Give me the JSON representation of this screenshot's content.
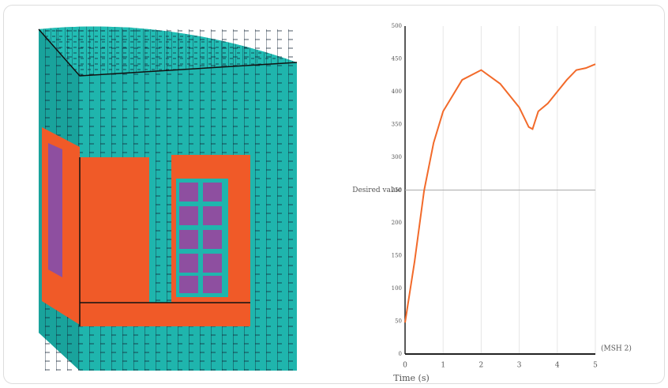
{
  "chart_data": {
    "type": "line",
    "x_label": "Time (s)",
    "x_unit": "(MSH 2)",
    "x": [
      0,
      0.25,
      0.5,
      0.75,
      1,
      1.5,
      2,
      2.5,
      3,
      3.25,
      3.35,
      3.5,
      3.75,
      4,
      4.25,
      4.5,
      4.75,
      5
    ],
    "series": [
      {
        "color": "#f26a2a",
        "values": [
          48,
          141,
          249,
          322,
          370,
          418,
          433,
          412,
          376,
          346,
          343,
          370,
          382,
          400,
          418,
          433,
          436,
          442
        ]
      }
    ],
    "xlim": [
      0,
      5
    ],
    "xticks": [
      0,
      1,
      2,
      3,
      4,
      5
    ],
    "ylim": [
      0,
      500
    ],
    "yticks": [
      0,
      50,
      100,
      150,
      200,
      250,
      300,
      350,
      400,
      450,
      500
    ],
    "reference_line": {
      "value": 250,
      "label": "Desired value"
    },
    "grid": true
  }
}
